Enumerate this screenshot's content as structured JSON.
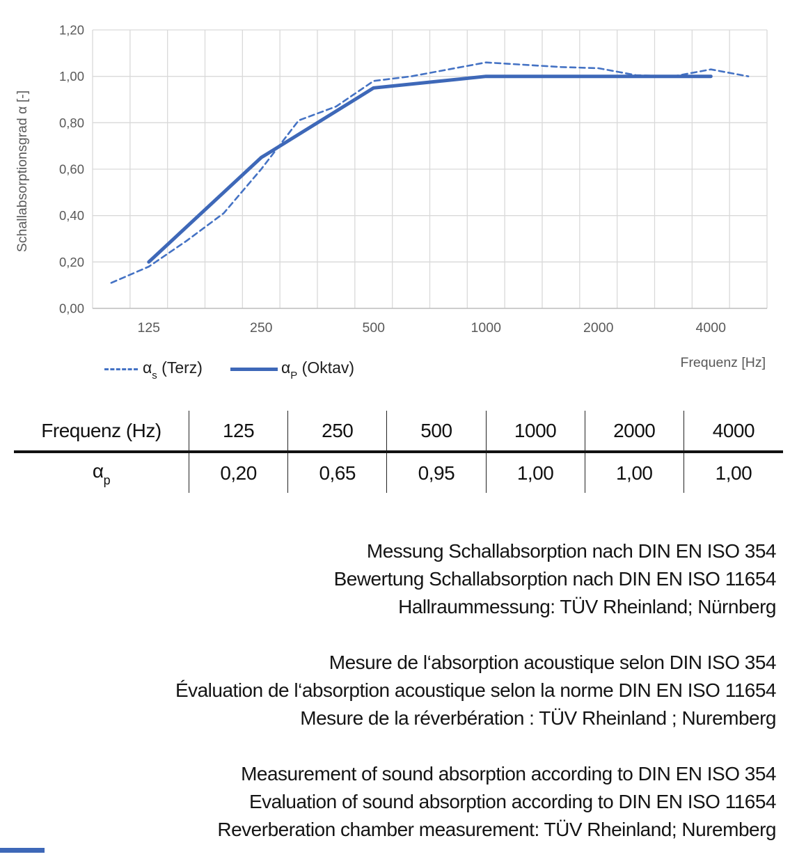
{
  "chart": {
    "ylabel": "Schallabsorptionsgrad α [-]",
    "xlabel": "Frequenz [Hz]",
    "legend": [
      {
        "alpha": "α",
        "sub": "s",
        "rest": " (Terz)",
        "style": "dashed"
      },
      {
        "alpha": "α",
        "sub": "P",
        "rest": " (Oktav)",
        "style": "solid"
      }
    ],
    "colors": {
      "solid_line": "#3E68B8",
      "dashed_line": "#4472C4",
      "grid": "#D9D9D9",
      "axis_line": "#BFBFBF",
      "axis_text": "#595959"
    }
  },
  "chart_data": {
    "type": "line",
    "categories": [
      "100",
      "125",
      "160",
      "200",
      "250",
      "315",
      "400",
      "500",
      "630",
      "800",
      "1000",
      "1250",
      "1600",
      "2000",
      "2500",
      "3150",
      "4000",
      "5000"
    ],
    "x_tick_labels": [
      "125",
      "250",
      "500",
      "1000",
      "2000",
      "4000"
    ],
    "y_ticks": {
      "values": [
        0,
        0.2,
        0.4,
        0.6,
        0.8,
        1.0,
        1.2
      ],
      "labels": [
        "0,00",
        "0,20",
        "0,40",
        "0,60",
        "0,80",
        "1,00",
        "1,20"
      ]
    },
    "ylim": [
      0,
      1.2
    ],
    "grid": true,
    "legend_position": "bottom-left",
    "series": [
      {
        "name": "αs (Terz)",
        "style": "dashed",
        "x": [
          "100",
          "125",
          "160",
          "200",
          "250",
          "315",
          "400",
          "500",
          "630",
          "800",
          "1000",
          "1250",
          "1600",
          "2000",
          "2500",
          "3150",
          "4000",
          "5000"
        ],
        "values": [
          0.11,
          0.18,
          0.29,
          0.41,
          0.6,
          0.81,
          0.87,
          0.98,
          1.0,
          1.03,
          1.06,
          1.05,
          1.04,
          1.035,
          1.005,
          1.0,
          1.03,
          1.0
        ]
      },
      {
        "name": "αP (Oktav)",
        "style": "solid",
        "x": [
          "125",
          "250",
          "500",
          "1000",
          "2000",
          "4000"
        ],
        "values": [
          0.2,
          0.65,
          0.95,
          1.0,
          1.0,
          1.0
        ]
      }
    ]
  },
  "table": {
    "header": [
      "Frequenz (Hz)",
      "125",
      "250",
      "500",
      "1000",
      "2000",
      "4000"
    ],
    "row_label": {
      "alpha": "α",
      "sub": "p"
    },
    "values": [
      "0,20",
      "0,65",
      "0,95",
      "1,00",
      "1,00",
      "1,00"
    ]
  },
  "notes": {
    "german": [
      "Messung Schallabsorption nach DIN EN ISO 354",
      "Bewertung Schallabsorption nach DIN EN ISO 11654",
      "Hallraummessung: TÜV Rheinland; Nürnberg"
    ],
    "french": [
      "Mesure de l‘absorption acoustique selon DIN ISO 354",
      "Évaluation de l‘absorption acoustique selon la norme DIN EN ISO 11654",
      "Mesure de la réverbération : TÜV Rheinland ; Nuremberg"
    ],
    "english": [
      "Measurement of sound absorption according to DIN EN ISO 354",
      "Evaluation of sound absorption according to DIN EN ISO 11654",
      "Reverberation chamber measurement: TÜV Rheinland; Nuremberg"
    ]
  },
  "footer": {
    "accent_color": "#3E68B8"
  }
}
